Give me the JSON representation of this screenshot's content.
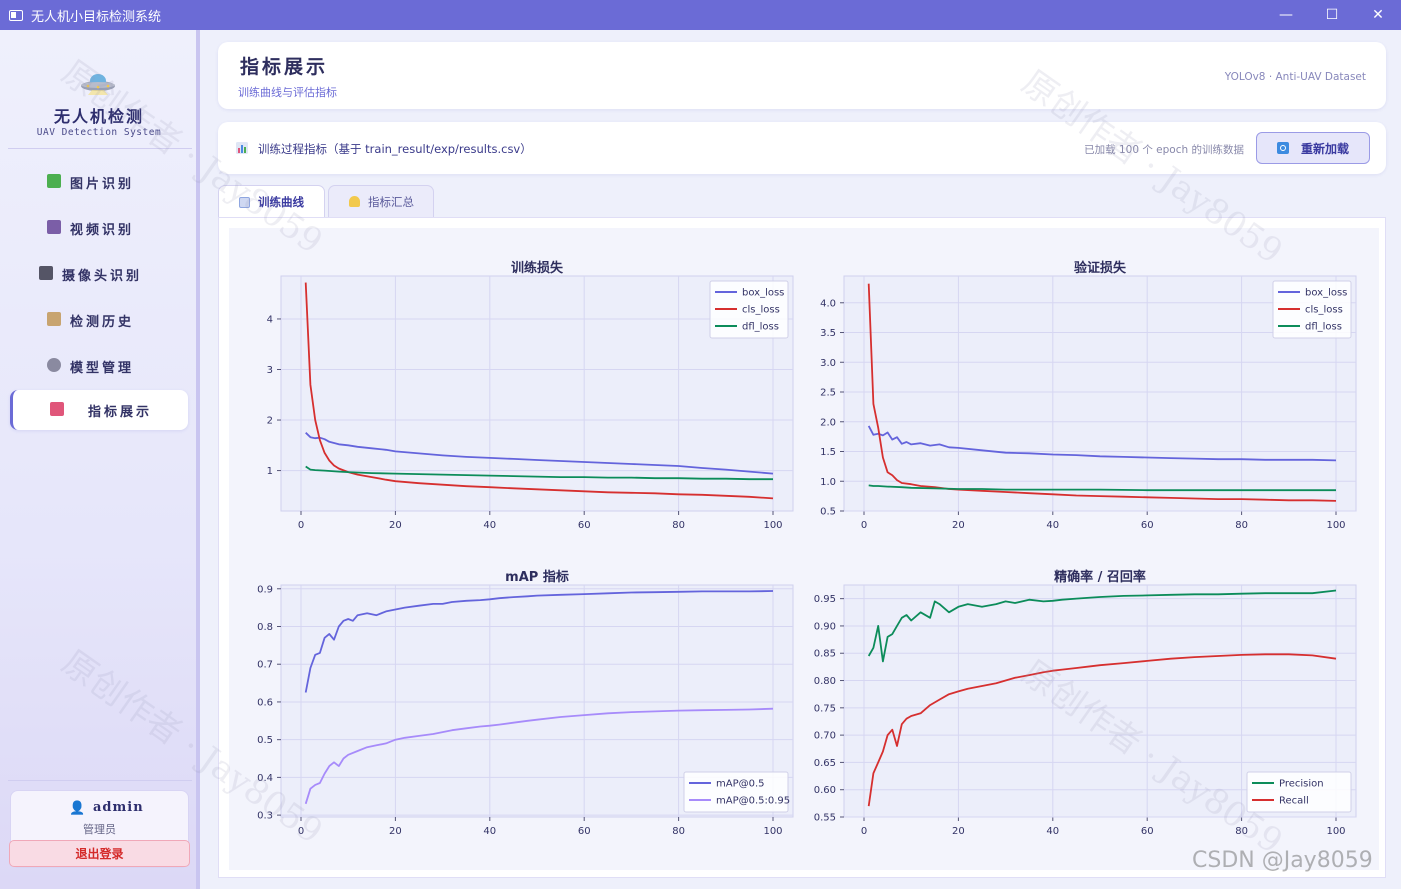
{
  "window": {
    "title": "无人机小目标检测系统",
    "min": "—",
    "max": "☐",
    "close": "✕"
  },
  "sidebar": {
    "app_name": "无人机检测",
    "app_sub": "UAV Detection System",
    "items": [
      {
        "label": "图片识别",
        "icon": "image-icon",
        "color": "#4caf50"
      },
      {
        "label": "视频识别",
        "icon": "film-icon",
        "color": "#7b5ea7"
      },
      {
        "label": "摄像头识别",
        "icon": "camera-icon",
        "color": "#555566"
      },
      {
        "label": "检测历史",
        "icon": "clipboard-icon",
        "color": "#c8a470"
      },
      {
        "label": "模型管理",
        "icon": "gear-icon",
        "color": "#8a8aa0"
      },
      {
        "label": "指标展示",
        "icon": "bar-chart-icon",
        "color": "#e0567a"
      }
    ],
    "active_index": 5,
    "user": {
      "name": "admin",
      "role": "管理员",
      "logout": "退出登录"
    }
  },
  "header": {
    "title": "指标展示",
    "subtitle": "训练曲线与评估指标",
    "right": "YOLOv8 · Anti-UAV Dataset"
  },
  "toolbar": {
    "label": "训练过程指标（基于 train_result/exp/results.csv）",
    "status": "已加载 100 个 epoch 的训练数据",
    "reload": "重新加载"
  },
  "tabs": [
    {
      "label": "训练曲线",
      "active": true
    },
    {
      "label": "指标汇总",
      "active": false
    }
  ],
  "watermarks": [
    "原创作者 · Jay8059",
    "原创作者 · Jay8059",
    "原创作者 · Jay8059",
    "原创作者 · Jay8059"
  ],
  "footer_watermark": "CSDN @Jay8059",
  "chart_data": [
    {
      "type": "line",
      "title": "训练损失",
      "xlim": [
        0,
        100
      ],
      "ylim": [
        0.2,
        4.85
      ],
      "xticks": [
        0,
        20,
        40,
        60,
        80,
        100
      ],
      "yticks": [
        1,
        2,
        3,
        4
      ],
      "legend": "top-right",
      "series": [
        {
          "name": "box_loss",
          "color": "#6464dc",
          "x": [
            1,
            2,
            3,
            4,
            5,
            6,
            8,
            10,
            12,
            15,
            18,
            20,
            25,
            30,
            35,
            40,
            45,
            50,
            55,
            60,
            65,
            70,
            75,
            80,
            85,
            90,
            95,
            100
          ],
          "y": [
            1.75,
            1.66,
            1.64,
            1.65,
            1.62,
            1.57,
            1.52,
            1.5,
            1.47,
            1.44,
            1.41,
            1.38,
            1.34,
            1.3,
            1.27,
            1.25,
            1.23,
            1.21,
            1.19,
            1.17,
            1.15,
            1.13,
            1.11,
            1.09,
            1.05,
            1.02,
            0.98,
            0.94
          ]
        },
        {
          "name": "cls_loss",
          "color": "#d62f2f",
          "x": [
            1,
            2,
            3,
            4,
            5,
            6,
            7,
            8,
            10,
            12,
            15,
            18,
            20,
            25,
            30,
            35,
            40,
            45,
            50,
            55,
            60,
            65,
            70,
            75,
            80,
            85,
            90,
            95,
            100
          ],
          "y": [
            4.72,
            2.7,
            2.0,
            1.6,
            1.35,
            1.2,
            1.1,
            1.04,
            0.97,
            0.92,
            0.87,
            0.82,
            0.79,
            0.75,
            0.72,
            0.69,
            0.67,
            0.65,
            0.63,
            0.61,
            0.59,
            0.57,
            0.56,
            0.55,
            0.53,
            0.52,
            0.5,
            0.48,
            0.45
          ]
        },
        {
          "name": "dfl_loss",
          "color": "#0c8c5a",
          "x": [
            1,
            2,
            3,
            5,
            8,
            10,
            15,
            20,
            25,
            30,
            35,
            40,
            45,
            50,
            55,
            60,
            65,
            70,
            75,
            80,
            85,
            90,
            95,
            100
          ],
          "y": [
            1.08,
            1.02,
            1.01,
            1.0,
            0.98,
            0.97,
            0.95,
            0.94,
            0.93,
            0.92,
            0.91,
            0.9,
            0.89,
            0.88,
            0.87,
            0.87,
            0.86,
            0.86,
            0.85,
            0.85,
            0.84,
            0.84,
            0.83,
            0.83
          ]
        }
      ]
    },
    {
      "type": "line",
      "title": "验证损失",
      "xlim": [
        0,
        100
      ],
      "ylim": [
        0.5,
        4.45
      ],
      "xticks": [
        0,
        20,
        40,
        60,
        80,
        100
      ],
      "yticks": [
        0.5,
        1.0,
        1.5,
        2.0,
        2.5,
        3.0,
        3.5,
        4.0
      ],
      "legend": "top-right",
      "series": [
        {
          "name": "box_loss",
          "color": "#6464dc",
          "x": [
            1,
            2,
            3,
            4,
            5,
            6,
            7,
            8,
            9,
            10,
            12,
            14,
            16,
            18,
            20,
            25,
            30,
            35,
            40,
            45,
            50,
            55,
            60,
            65,
            70,
            75,
            80,
            85,
            90,
            95,
            100
          ],
          "y": [
            1.93,
            1.78,
            1.8,
            1.77,
            1.82,
            1.7,
            1.74,
            1.63,
            1.66,
            1.62,
            1.64,
            1.6,
            1.62,
            1.57,
            1.56,
            1.52,
            1.48,
            1.47,
            1.45,
            1.44,
            1.42,
            1.41,
            1.4,
            1.39,
            1.38,
            1.37,
            1.37,
            1.36,
            1.36,
            1.36,
            1.35
          ]
        },
        {
          "name": "cls_loss",
          "color": "#d62f2f",
          "x": [
            1,
            2,
            3,
            4,
            5,
            6,
            7,
            8,
            10,
            12,
            15,
            18,
            20,
            25,
            30,
            35,
            40,
            45,
            50,
            55,
            60,
            65,
            70,
            75,
            80,
            85,
            90,
            95,
            100
          ],
          "y": [
            4.32,
            2.3,
            1.9,
            1.4,
            1.15,
            1.1,
            1.02,
            0.97,
            0.95,
            0.92,
            0.9,
            0.87,
            0.86,
            0.84,
            0.82,
            0.8,
            0.78,
            0.76,
            0.75,
            0.74,
            0.73,
            0.72,
            0.71,
            0.7,
            0.7,
            0.69,
            0.68,
            0.68,
            0.67
          ]
        },
        {
          "name": "dfl_loss",
          "color": "#0c8c5a",
          "x": [
            1,
            2,
            3,
            5,
            8,
            10,
            15,
            20,
            25,
            30,
            40,
            50,
            60,
            70,
            80,
            90,
            100
          ],
          "y": [
            0.93,
            0.92,
            0.92,
            0.91,
            0.9,
            0.89,
            0.88,
            0.87,
            0.87,
            0.86,
            0.86,
            0.86,
            0.85,
            0.85,
            0.85,
            0.85,
            0.85
          ]
        }
      ]
    },
    {
      "type": "line",
      "title": "mAP 指标",
      "xlim": [
        0,
        100
      ],
      "ylim": [
        0.295,
        0.91
      ],
      "xticks": [
        0,
        20,
        40,
        60,
        80,
        100
      ],
      "yticks": [
        0.3,
        0.4,
        0.5,
        0.6,
        0.7,
        0.8,
        0.9
      ],
      "legend": "bottom-right",
      "series": [
        {
          "name": "mAP@0.5",
          "color": "#6464dc",
          "x": [
            1,
            2,
            3,
            4,
            5,
            6,
            7,
            8,
            9,
            10,
            11,
            12,
            14,
            16,
            18,
            20,
            22,
            25,
            28,
            30,
            32,
            35,
            38,
            40,
            42,
            45,
            48,
            50,
            55,
            60,
            65,
            70,
            75,
            80,
            85,
            90,
            95,
            100
          ],
          "y": [
            0.625,
            0.69,
            0.725,
            0.73,
            0.77,
            0.78,
            0.765,
            0.8,
            0.815,
            0.82,
            0.815,
            0.83,
            0.835,
            0.83,
            0.84,
            0.845,
            0.85,
            0.855,
            0.86,
            0.86,
            0.865,
            0.868,
            0.87,
            0.872,
            0.875,
            0.878,
            0.88,
            0.882,
            0.884,
            0.886,
            0.888,
            0.89,
            0.891,
            0.892,
            0.893,
            0.893,
            0.893,
            0.894
          ]
        },
        {
          "name": "mAP@0.5:0.95",
          "color": "#a78bfa",
          "x": [
            1,
            2,
            3,
            4,
            5,
            6,
            7,
            8,
            9,
            10,
            12,
            14,
            16,
            18,
            20,
            22,
            25,
            28,
            30,
            32,
            35,
            38,
            40,
            42,
            45,
            48,
            50,
            55,
            60,
            65,
            70,
            75,
            80,
            85,
            90,
            95,
            100
          ],
          "y": [
            0.33,
            0.37,
            0.38,
            0.385,
            0.41,
            0.43,
            0.44,
            0.43,
            0.45,
            0.46,
            0.47,
            0.48,
            0.485,
            0.49,
            0.5,
            0.505,
            0.51,
            0.515,
            0.52,
            0.525,
            0.53,
            0.535,
            0.537,
            0.54,
            0.545,
            0.55,
            0.553,
            0.56,
            0.565,
            0.57,
            0.573,
            0.575,
            0.577,
            0.578,
            0.579,
            0.58,
            0.582
          ]
        }
      ]
    },
    {
      "type": "line",
      "title": "精确率 / 召回率",
      "xlim": [
        0,
        100
      ],
      "ylim": [
        0.55,
        0.975
      ],
      "xticks": [
        0,
        20,
        40,
        60,
        80,
        100
      ],
      "yticks": [
        0.55,
        0.6,
        0.65,
        0.7,
        0.75,
        0.8,
        0.85,
        0.9,
        0.95
      ],
      "legend": "bottom-right",
      "series": [
        {
          "name": "Precision",
          "color": "#0c8c5a",
          "x": [
            1,
            2,
            3,
            4,
            5,
            6,
            7,
            8,
            9,
            10,
            12,
            14,
            15,
            16,
            18,
            20,
            22,
            25,
            28,
            30,
            32,
            35,
            38,
            40,
            42,
            45,
            48,
            50,
            55,
            60,
            65,
            70,
            75,
            80,
            85,
            90,
            95,
            100
          ],
          "y": [
            0.845,
            0.86,
            0.9,
            0.835,
            0.88,
            0.885,
            0.9,
            0.915,
            0.92,
            0.91,
            0.925,
            0.915,
            0.945,
            0.94,
            0.925,
            0.935,
            0.94,
            0.935,
            0.94,
            0.945,
            0.942,
            0.948,
            0.945,
            0.946,
            0.948,
            0.95,
            0.952,
            0.953,
            0.955,
            0.956,
            0.957,
            0.958,
            0.958,
            0.959,
            0.96,
            0.96,
            0.96,
            0.965
          ]
        },
        {
          "name": "Recall",
          "color": "#d62f2f",
          "x": [
            1,
            2,
            3,
            4,
            5,
            6,
            7,
            8,
            9,
            10,
            12,
            14,
            16,
            18,
            20,
            22,
            25,
            28,
            30,
            32,
            35,
            38,
            40,
            42,
            45,
            48,
            50,
            55,
            60,
            65,
            70,
            75,
            80,
            85,
            90,
            95,
            100
          ],
          "y": [
            0.57,
            0.63,
            0.65,
            0.67,
            0.7,
            0.71,
            0.68,
            0.72,
            0.73,
            0.735,
            0.74,
            0.755,
            0.765,
            0.775,
            0.78,
            0.785,
            0.79,
            0.795,
            0.8,
            0.805,
            0.81,
            0.815,
            0.818,
            0.82,
            0.823,
            0.826,
            0.828,
            0.832,
            0.836,
            0.84,
            0.843,
            0.845,
            0.847,
            0.848,
            0.848,
            0.846,
            0.84
          ]
        }
      ]
    }
  ]
}
